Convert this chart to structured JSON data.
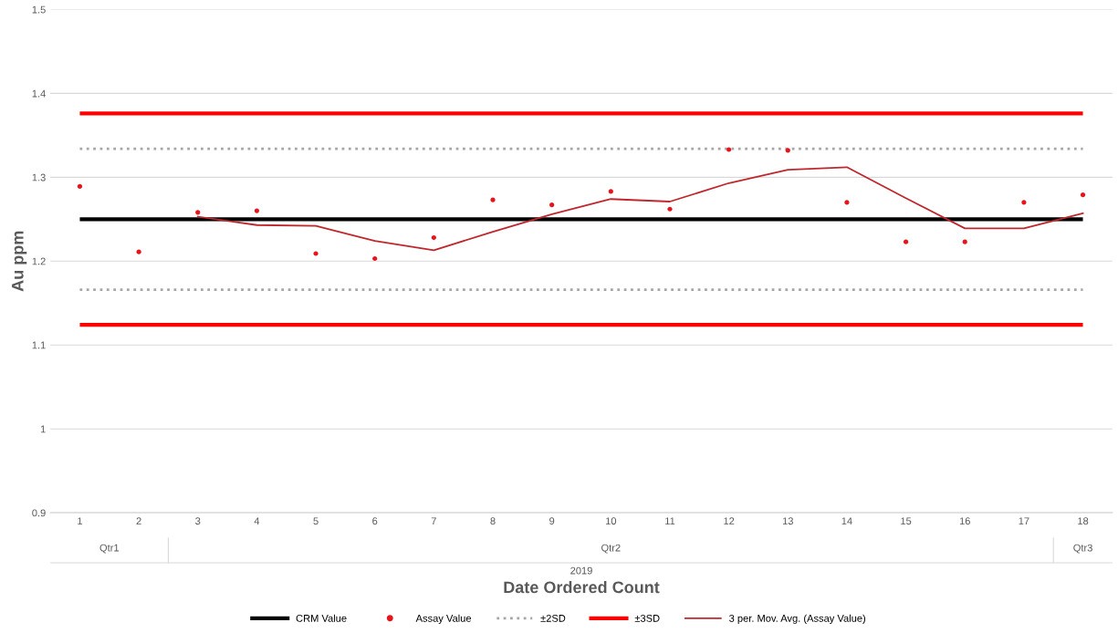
{
  "chart_data": {
    "type": "scatter",
    "xlabel": "Date Ordered Count",
    "ylabel": "Au ppm",
    "categories": [
      "1",
      "2",
      "3",
      "4",
      "5",
      "6",
      "7",
      "8",
      "9",
      "10",
      "11",
      "12",
      "13",
      "14",
      "15",
      "16",
      "17",
      "18"
    ],
    "series": [
      {
        "name": "Assay Value",
        "marker": "circle",
        "color": "#e8141b",
        "values": [
          1.289,
          1.211,
          1.258,
          1.26,
          1.209,
          1.203,
          1.228,
          1.273,
          1.267,
          1.283,
          1.262,
          1.333,
          1.332,
          1.27,
          1.223,
          1.223,
          1.27,
          1.279
        ]
      },
      {
        "name": "3 per. Mov. Avg. (Assay Value)",
        "type": "line",
        "marker": "none",
        "line_style": "solid",
        "color": "#c0272d",
        "values": [
          null,
          null,
          1.253,
          1.243,
          1.242,
          1.224,
          1.213,
          1.235,
          1.256,
          1.274,
          1.271,
          1.293,
          1.309,
          1.312,
          1.275,
          1.239,
          1.239,
          1.257
        ]
      }
    ],
    "ref_lines": [
      {
        "axis": "y",
        "value": 1.25,
        "label": "CRM Value",
        "color": "#000000",
        "line_style": "solid"
      },
      {
        "axis": "y",
        "value": 1.334,
        "label": "±2SD",
        "color": "#a6a6a6",
        "line_style": "dotted"
      },
      {
        "axis": "y",
        "value": 1.166,
        "label": null,
        "color": "#a6a6a6",
        "line_style": "dotted"
      },
      {
        "axis": "y",
        "value": 1.376,
        "label": "±3SD",
        "color": "#ff0000",
        "line_style": "solid"
      },
      {
        "axis": "y",
        "value": 1.124,
        "label": null,
        "color": "#ff0000",
        "line_style": "solid"
      }
    ],
    "ylim": [
      0.9,
      1.5
    ],
    "yticks": [
      0.9,
      1,
      1.1,
      1.2,
      1.3,
      1.4,
      1.5
    ],
    "annotations": [
      "Qtr1",
      "Qtr2",
      "Qtr3",
      "2019"
    ],
    "grid": "y",
    "legend": "bottom"
  }
}
